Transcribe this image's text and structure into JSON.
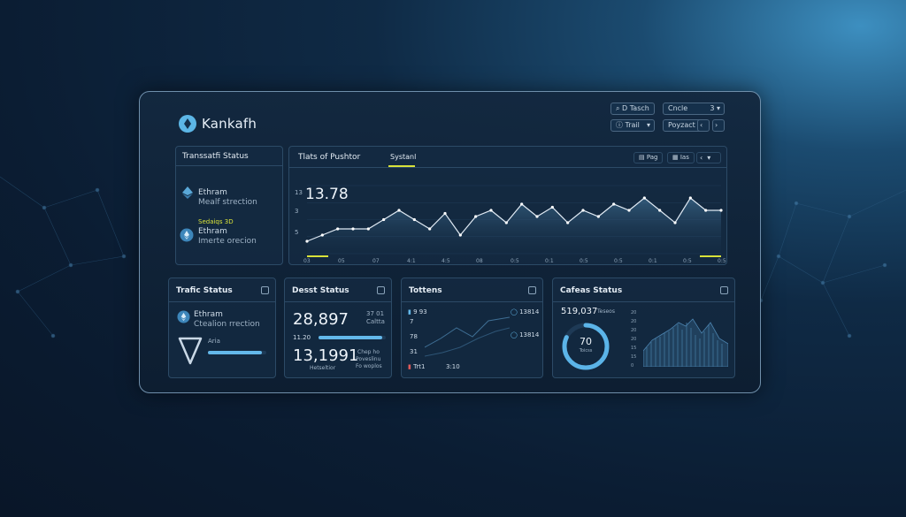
{
  "app": {
    "brand": "Kankafh"
  },
  "top_controls": {
    "search_label": "D Tasch",
    "trail_label": "Trail",
    "cncle_label": "Cncle",
    "cncle_value": "3",
    "poyzact_label": "Poyzact"
  },
  "left_panel": {
    "title": "Transsatfi Status",
    "item1_name": "Ethram",
    "item1_sub": "Mealf strection",
    "item2_tag": "Sedaiqs 3D",
    "item2_name": "Ethram",
    "item2_sub": "Imerte orecion"
  },
  "main_chart": {
    "tab1": "Tlats of Pushtor",
    "tab2": "Systanl",
    "btn_pag": "Pag",
    "btn_ias": "Ias",
    "value": "13.78",
    "y_top": "13",
    "y_mid": "3",
    "y_low": "5",
    "x_labels": [
      "03",
      "05",
      "07",
      "4:1",
      "4:5",
      "08",
      "0:5",
      "0:1",
      "0:5",
      "0:5",
      "0:1",
      "0:5",
      "0:5"
    ],
    "accent": "#d8e23a"
  },
  "chart_data": {
    "type": "area",
    "x": [
      1,
      2,
      3,
      4,
      5,
      6,
      7,
      8,
      9,
      10,
      11,
      12,
      13,
      14,
      15,
      16,
      17,
      18,
      19,
      20,
      21,
      22,
      23,
      24,
      25,
      26,
      27,
      28
    ],
    "values": [
      5,
      6,
      7,
      7,
      7,
      8.5,
      10,
      8.5,
      7,
      9.5,
      6,
      9,
      10,
      8,
      11,
      9,
      10.5,
      8,
      10,
      9,
      11,
      10,
      12,
      10,
      8,
      12,
      10,
      10
    ],
    "ylim": [
      3,
      14
    ],
    "grid": true
  },
  "traffic_card": {
    "title": "Trafic Status",
    "name": "Ethram",
    "sub": "Ctealion rrection",
    "tag": "Aria",
    "progress": 0.92
  },
  "dest_card": {
    "title": "Desst Status",
    "value1": "28,897",
    "side1a": "37 01",
    "side1b": "Caltta",
    "bar_label": "11.20",
    "bar_progress": 0.95,
    "value2": "13,1991",
    "value2_sub": "Hetseltior",
    "side2a": "Chep ho",
    "side2b": "Poveslinu",
    "side2c": "Fo woplos"
  },
  "tokens_card": {
    "title": "Tottens",
    "l1": "9 93",
    "l2": "7",
    "l3": "78",
    "l4": "31",
    "r1": "13814",
    "r2": "13814",
    "bottom1": "Trt1",
    "bottom2": "3:10"
  },
  "cards_card": {
    "title": "Cafeas Status",
    "total": "519,037",
    "total_sub": "Teseos",
    "donut_value": "70",
    "donut_sub": "Toicss",
    "donut_fraction": 0.82,
    "y_labels": [
      "20",
      "20",
      "20",
      "20",
      "15",
      "15",
      "0"
    ]
  }
}
